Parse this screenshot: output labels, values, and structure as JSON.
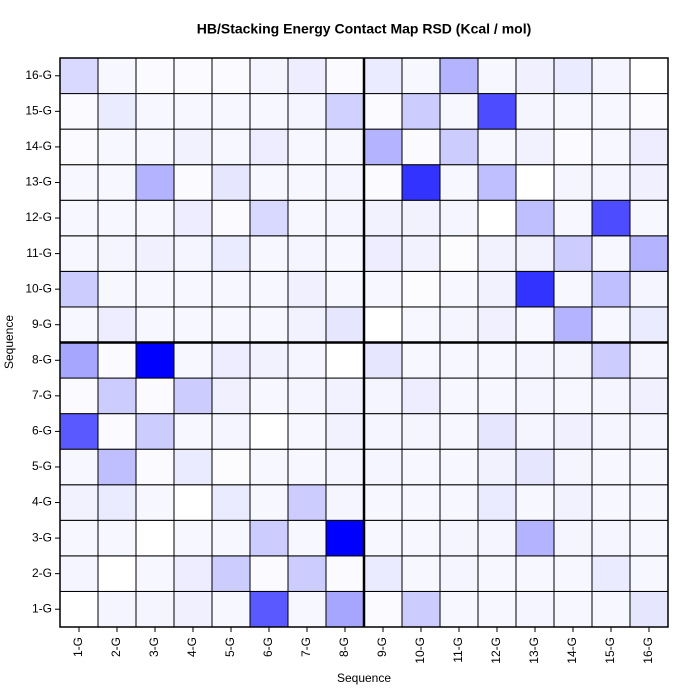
{
  "chart_data": {
    "type": "heatmap",
    "title": "HB/Stacking Energy Contact Map RSD (Kcal / mol)",
    "x_label": "Sequence",
    "y_label": "Sequence",
    "x_categories": [
      "1-G",
      "2-G",
      "3-G",
      "4-G",
      "5-G",
      "6-G",
      "7-G",
      "8-G",
      "9-G",
      "10-G",
      "11-G",
      "12-G",
      "13-G",
      "14-G",
      "15-G",
      "16-G"
    ],
    "y_categories": [
      "1-G",
      "2-G",
      "3-G",
      "4-G",
      "5-G",
      "6-G",
      "7-G",
      "8-G",
      "9-G",
      "10-G",
      "11-G",
      "12-G",
      "13-G",
      "14-G",
      "15-G",
      "16-G"
    ],
    "low_color": "#ffffff",
    "high_color": "#0000ff",
    "values": [
      [
        0,
        0.04,
        0.04,
        0.06,
        0.03,
        0.65,
        0.03,
        0.35,
        0.02,
        0.2,
        0.03,
        0.03,
        0.04,
        0.03,
        0.03,
        0.1
      ],
      [
        0.04,
        0,
        0.03,
        0.07,
        0.2,
        0.02,
        0.2,
        0.02,
        0.08,
        0.03,
        0.04,
        0.03,
        0.03,
        0.03,
        0.08,
        0.03
      ],
      [
        0.03,
        0.03,
        0,
        0.03,
        0.03,
        0.2,
        0.03,
        1.0,
        0.03,
        0.03,
        0.04,
        0.04,
        0.3,
        0.04,
        0.04,
        0.03
      ],
      [
        0.05,
        0.08,
        0.03,
        0,
        0.08,
        0.03,
        0.2,
        0.04,
        0.03,
        0.03,
        0.03,
        0.08,
        0.03,
        0.05,
        0.03,
        0.03
      ],
      [
        0.03,
        0.25,
        0.02,
        0.08,
        0.01,
        0.03,
        0.03,
        0.04,
        0.04,
        0.03,
        0.03,
        0.05,
        0.1,
        0.04,
        0.03,
        0.03
      ],
      [
        0.65,
        0.02,
        0.2,
        0.03,
        0.04,
        0,
        0.03,
        0.05,
        0.04,
        0.04,
        0.03,
        0.1,
        0.04,
        0.06,
        0.04,
        0.04
      ],
      [
        0.02,
        0.2,
        0.02,
        0.2,
        0.06,
        0.03,
        0.04,
        0.05,
        0.04,
        0.07,
        0.03,
        0.03,
        0.04,
        0.03,
        0.04,
        0.06
      ],
      [
        0.35,
        0.02,
        1.0,
        0.03,
        0.07,
        0.05,
        0.04,
        0,
        0.1,
        0.03,
        0.03,
        0.03,
        0.04,
        0.04,
        0.2,
        0.04
      ],
      [
        0.03,
        0.07,
        0.03,
        0.03,
        0.03,
        0.03,
        0.05,
        0.1,
        0,
        0.03,
        0.04,
        0.06,
        0.03,
        0.3,
        0.03,
        0.08
      ],
      [
        0.2,
        0.03,
        0.03,
        0.03,
        0.03,
        0.03,
        0.06,
        0.03,
        0.03,
        0.01,
        0.03,
        0.05,
        0.8,
        0.03,
        0.25,
        0.04
      ],
      [
        0.03,
        0.04,
        0.06,
        0.04,
        0.08,
        0.03,
        0.04,
        0.03,
        0.07,
        0.05,
        0.01,
        0.05,
        0.05,
        0.2,
        0.03,
        0.3
      ],
      [
        0.03,
        0.03,
        0.03,
        0.07,
        0.02,
        0.15,
        0.03,
        0.04,
        0.05,
        0.05,
        0.04,
        0,
        0.25,
        0.03,
        0.7,
        0.03
      ],
      [
        0.03,
        0.03,
        0.3,
        0.02,
        0.1,
        0.03,
        0.03,
        0.04,
        0.02,
        0.8,
        0.03,
        0.25,
        0,
        0.04,
        0.04,
        0.06
      ],
      [
        0.02,
        0.03,
        0.03,
        0.05,
        0.03,
        0.07,
        0.03,
        0.03,
        0.3,
        0.02,
        0.2,
        0.03,
        0.05,
        0.02,
        0.03,
        0.07
      ],
      [
        0.02,
        0.08,
        0.03,
        0.03,
        0.03,
        0.03,
        0.04,
        0.18,
        0.02,
        0.2,
        0.03,
        0.7,
        0.04,
        0.03,
        0.03,
        0.02
      ],
      [
        0.15,
        0.03,
        0.02,
        0.02,
        0.02,
        0.04,
        0.07,
        0.02,
        0.08,
        0.03,
        0.3,
        0.03,
        0.06,
        0.08,
        0.04,
        0
      ]
    ]
  }
}
